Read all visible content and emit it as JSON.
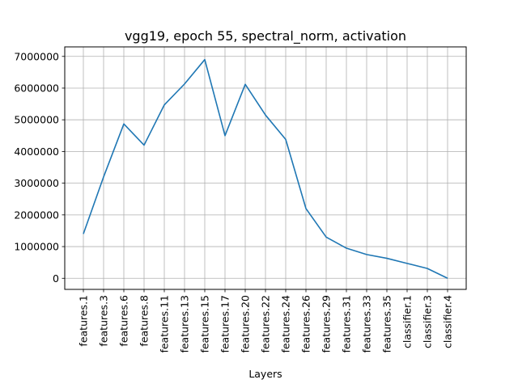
{
  "chart_data": {
    "type": "line",
    "title": "vgg19, epoch 55, spectral_norm, activation",
    "xlabel": "Layers",
    "ylabel": "",
    "categories": [
      "features.1",
      "features.3",
      "features.6",
      "features.8",
      "features.11",
      "features.13",
      "features.15",
      "features.17",
      "features.20",
      "features.22",
      "features.24",
      "features.26",
      "features.29",
      "features.31",
      "features.33",
      "features.35",
      "classifier.1",
      "classifier.3",
      "classifier.4"
    ],
    "series": [
      {
        "values": [
          1400000,
          3200000,
          4870000,
          4200000,
          5470000,
          6130000,
          6900000,
          4500000,
          6120000,
          5150000,
          4380000,
          2200000,
          1300000,
          950000,
          750000,
          630000,
          470000,
          310000,
          0
        ]
      }
    ],
    "yticks": [
      0,
      1000000,
      2000000,
      3000000,
      4000000,
      5000000,
      6000000,
      7000000
    ],
    "ytick_labels": [
      "0",
      "1000000",
      "2000000",
      "3000000",
      "4000000",
      "5000000",
      "6000000",
      "7000000"
    ],
    "ylim": [
      -350000,
      7300000
    ],
    "grid": true,
    "line_color": "#1f77b4"
  }
}
